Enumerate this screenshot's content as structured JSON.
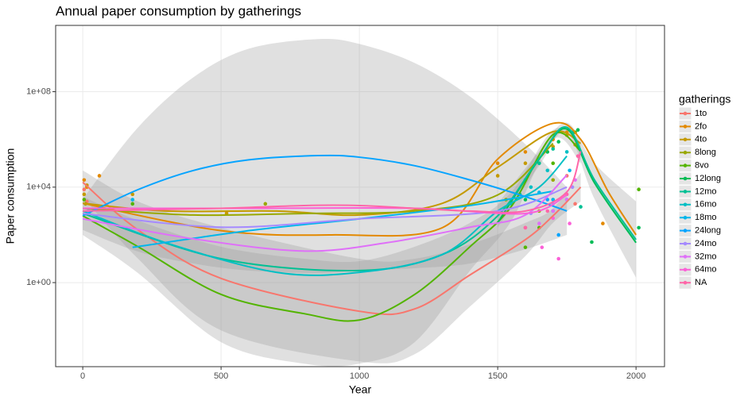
{
  "chart_data": {
    "type": "line",
    "title": "Annual paper consumption by gatherings",
    "x_label": "Year",
    "y_label": "Paper consumption",
    "log_y": true,
    "grid": true,
    "legend": "right",
    "legend_title": "gatherings",
    "xlim": [
      -98,
      2103
    ],
    "xticks": [
      0,
      500,
      1000,
      1500,
      2000
    ],
    "ylim": [
      0.0003,
      60000000000.0
    ],
    "yticks": [
      {
        "value": 1,
        "label": "1e+00"
      },
      {
        "value": 10000,
        "label": "1e+04"
      },
      {
        "value": 100000000,
        "label": "1e+08"
      }
    ],
    "series": [
      {
        "name": "1to",
        "color": "#F8766D",
        "x": [
          0,
          200,
          500,
          1000,
          1200,
          1400,
          1600,
          1700,
          1800
        ],
        "values": [
          16000.0,
          160.0,
          1.5,
          0.063,
          0.079,
          2.1,
          63.0,
          630.0,
          10000.0
        ],
        "band": {
          "x": [
            0,
            200,
            500,
            1000,
            1200,
            1400,
            1600,
            1700,
            1800
          ],
          "upper": [
            50000.0,
            2500.0,
            200.0,
            10.0,
            10.0,
            40.0,
            320.0,
            1300.0,
            40000.0
          ],
          "lower": [
            4000.0,
            10.0,
            0.01,
            0.0005,
            0.001,
            0.1,
            13.0,
            320.0,
            2500.0
          ]
        },
        "points": {
          "x": [
            5,
            15,
            1600,
            1700,
            1750,
            1780
          ],
          "y": [
            8000,
            2500,
            200,
            3000,
            30000,
            2000
          ]
        }
      },
      {
        "name": "2fo",
        "color": "#E38900",
        "x": [
          0,
          500,
          900,
          1300,
          1500,
          1700,
          1800,
          1900,
          2000
        ],
        "values": [
          2100.0,
          150.0,
          100.0,
          200.0,
          150000.0,
          4700000.0,
          1000000.0,
          6300.0,
          100.0
        ],
        "points": {
          "x": [
            5,
            15,
            60,
            1500,
            1600,
            1700,
            1750,
            1780,
            1880
          ],
          "y": [
            20000,
            10000,
            30000,
            100000,
            300000,
            1000000,
            2000000,
            600000,
            300
          ]
        }
      },
      {
        "name": "4to",
        "color": "#C49A00",
        "x": [
          0,
          300,
          700,
          1000,
          1300,
          1500,
          1700,
          1800
        ],
        "values": [
          2100.0,
          1000.0,
          1000.0,
          680.0,
          2100.0,
          68000.0,
          2100000.0,
          680000.0
        ],
        "points": {
          "x": [
            5,
            15,
            180,
            520,
            1500,
            1600,
            1700,
            1750
          ],
          "y": [
            5000,
            12000,
            5000,
            800,
            30000,
            100000,
            500000,
            1500000
          ]
        }
      },
      {
        "name": "8long",
        "color": "#99A800",
        "x": [
          0,
          400,
          800,
          1200,
          1500,
          1700
        ],
        "values": [
          1300.0,
          680.0,
          790.0,
          1000.0,
          4700.0,
          680000.0
        ],
        "points": {
          "x": [
            10,
            660,
            1530,
            1650,
            1700
          ],
          "y": [
            2000,
            2000,
            3000,
            1000,
            20000
          ]
        }
      },
      {
        "name": "8vo",
        "color": "#53B400",
        "x": [
          0,
          200,
          500,
          800,
          1000,
          1200,
          1400,
          1550,
          1700,
          1800
        ],
        "values": [
          630.0,
          32.0,
          0.32,
          0.05,
          0.027,
          0.32,
          32.0,
          1600.0,
          1600000.0,
          320000.0
        ],
        "band": {
          "x": [
            0,
            200,
            500,
            800,
            1000,
            1200,
            1400,
            1550,
            1700,
            1800
          ],
          "upper": [
            4000.0,
            400.0,
            32.0,
            10.0,
            7.9,
            32.0,
            320.0,
            6300.0,
            2500000.0,
            790000.0
          ],
          "lower": [
            100.0,
            2.5,
            0.0032,
            0.0004,
            0.0004,
            0.0032,
            3.2,
            400.0,
            1000000.0,
            100000.0
          ]
        },
        "points": {
          "x": [
            5,
            180,
            1600,
            1650,
            1700,
            1780,
            2010
          ],
          "y": [
            3000,
            2000,
            30,
            200,
            100000,
            2000000,
            8000
          ]
        }
      },
      {
        "name": "12long",
        "color": "#00BC56",
        "x": [
          1500,
          1650,
          1750,
          1850,
          2000
        ],
        "values": [
          320.0,
          150000.0,
          2700000.0,
          15000.0,
          47.0
        ],
        "points": {
          "x": [
            1600,
            1680,
            1720,
            1790,
            1840,
            2010
          ],
          "y": [
            3000,
            300000,
            800000,
            2500000,
            50,
            200
          ]
        }
      },
      {
        "name": "12mo",
        "color": "#00C094",
        "x": [
          0,
          500,
          1000,
          1300,
          1500,
          1650,
          1750,
          1850,
          2000
        ],
        "values": [
          790.0,
          10.0,
          3.2,
          15.0,
          630.0,
          160000.0,
          3200000.0,
          20000.0,
          63.0
        ],
        "band": {
          "x": [
            1500,
            1650,
            1750,
            1850,
            2000
          ],
          "upper": [
            2000.0,
            320000.0,
            5000000.0,
            100000.0,
            2500.0
          ],
          "lower": [
            200.0,
            79000.0,
            2000000.0,
            3200.0,
            1.6
          ]
        },
        "points": {
          "x": [
            1580,
            1650,
            1700,
            1770,
            1800
          ],
          "y": [
            5000,
            100000,
            400000,
            2000000,
            1500
          ]
        }
      },
      {
        "name": "16mo",
        "color": "#00BFC4",
        "x": [
          0,
          300,
          700,
          1000,
          1300,
          1500,
          1650,
          1750
        ],
        "values": [
          1000.0,
          47.0,
          2.7,
          2.7,
          15.0,
          1000.0,
          10000.0,
          200000.0
        ],
        "points": {
          "x": [
            1550,
            1620,
            1680,
            1750,
            1790
          ],
          "y": [
            2000,
            10000,
            50000,
            300000,
            500000
          ]
        }
      },
      {
        "name": "18mo",
        "color": "#00B6EB",
        "x": [
          180,
          600,
          1000,
          1400,
          1700
        ],
        "values": [
          30.0,
          150.0,
          470.0,
          1700.0,
          6800.0
        ],
        "points": {
          "x": [
            180,
            1600,
            1650,
            1700,
            1760
          ],
          "y": [
            3000,
            20000,
            6000,
            3000,
            50000
          ]
        }
      },
      {
        "name": "24long",
        "color": "#06A4FF",
        "x": [
          0,
          200,
          400,
          600,
          850,
          1000,
          1200,
          1400,
          1600,
          1750
        ],
        "values": [
          630.0,
          7900.0,
          50000.0,
          140000.0,
          210000.0,
          180000.0,
          79000.0,
          20000.0,
          4000.0,
          1000.0
        ],
        "band": {
          "x": [
            0,
            200,
            400,
            600,
            850,
            1000,
            1200,
            1400,
            1600,
            1750
          ],
          "upper": [
            3200.0,
            3200000.0,
            400000000.0,
            6300000000.0,
            16000000000.0,
            10000000000.0,
            1600000000.0,
            63000000.0,
            630000.0,
            10000.0
          ],
          "lower": [
            160.0,
            20.0,
            6.3,
            3.2,
            2.5,
            3.2,
            4,
            6.3,
            25.0,
            100.0
          ]
        },
        "points": {
          "x": [
            1680,
            1720,
            1700,
            1750
          ],
          "y": [
            3000,
            100,
            1000,
            3000
          ]
        }
      },
      {
        "name": "24mo",
        "color": "#A58AFF",
        "x": [
          0,
          500,
          1000,
          1500,
          1750
        ],
        "values": [
          790.0,
          210.0,
          470.0,
          1000.0,
          10000.0
        ],
        "points": {
          "x": [
            20,
            1620,
            1700,
            1770
          ],
          "y": [
            1000,
            800,
            2000,
            10000
          ]
        }
      },
      {
        "name": "32mo",
        "color": "#DF70F8",
        "x": [
          0,
          400,
          800,
          1100,
          1400,
          1600,
          1750
        ],
        "values": [
          470.0,
          68.0,
          21.0,
          47.0,
          210.0,
          680.0,
          32000.0
        ],
        "points": {
          "x": [
            1650,
            1700,
            1750,
            1780
          ],
          "y": [
            300,
            1000,
            3000,
            20000
          ]
        }
      },
      {
        "name": "64mo",
        "color": "#FB61D7",
        "x": [
          0,
          600,
          1200,
          1600,
          1750
        ],
        "values": [
          1300.0,
          1300.0,
          1300.0,
          790.0,
          4700.0
        ],
        "points": {
          "x": [
            1660,
            1720,
            1760,
            1700
          ],
          "y": [
            30,
            10,
            300,
            500
          ]
        }
      },
      {
        "name": "NA",
        "color": "#FF66A8",
        "x": [
          0,
          500,
          800,
          1000,
          1200,
          1400,
          1600,
          1750,
          1800
        ],
        "values": [
          1000.0,
          1300.0,
          1700.0,
          1700.0,
          1300.0,
          1000.0,
          1000.0,
          6300.0,
          320000.0
        ],
        "points": {
          "x": [
            1600,
            1680,
            1750,
            1790
          ],
          "y": [
            200,
            1000,
            5000,
            200000
          ]
        }
      }
    ]
  }
}
